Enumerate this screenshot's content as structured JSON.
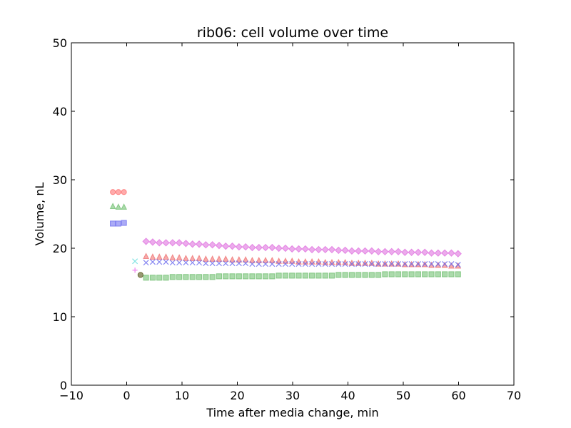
{
  "chart_data": {
    "type": "scatter",
    "title": "rib06: cell volume over time",
    "xlabel": "Time after media change, min",
    "ylabel": "Volume, nL",
    "xlim": [
      -10,
      70
    ],
    "ylim": [
      0,
      50
    ],
    "xticks": [
      -10,
      0,
      10,
      20,
      30,
      40,
      50,
      60,
      70
    ],
    "yticks": [
      0,
      10,
      20,
      30,
      40,
      50
    ],
    "xtick_labels": [
      "−10",
      "0",
      "10",
      "20",
      "30",
      "40",
      "50",
      "60",
      "70"
    ],
    "ytick_labels": [
      "0",
      "10",
      "20",
      "30",
      "40",
      "50"
    ],
    "grid": false,
    "legend": "none",
    "series": [
      {
        "marker": "circle",
        "color": "#ff6666",
        "x": [
          -2.5,
          -1.5,
          -0.5
        ],
        "y": [
          28.2,
          28.2,
          28.2
        ]
      },
      {
        "marker": "triangle",
        "color": "#66bb66",
        "x": [
          -2.5,
          -1.5,
          -0.5
        ],
        "y": [
          26.1,
          26.0,
          26.0
        ]
      },
      {
        "marker": "square",
        "color": "#6666ee",
        "x": [
          -2.5,
          -1.5,
          -0.5
        ],
        "y": [
          23.6,
          23.6,
          23.7
        ]
      },
      {
        "marker": "x",
        "color": "#66dddd",
        "x": [
          1.5
        ],
        "y": [
          18.1
        ]
      },
      {
        "marker": "plus",
        "color": "#ee66ee",
        "x": [
          1.5
        ],
        "y": [
          16.8
        ]
      },
      {
        "marker": "circle",
        "color": "#444400",
        "x": [
          2.5
        ],
        "y": [
          16.1
        ]
      },
      {
        "marker": "diamond",
        "color": "#dd66dd",
        "x": [
          3.5,
          4.7,
          5.9,
          7.1,
          8.3,
          9.5,
          10.7,
          11.9,
          13.1,
          14.3,
          15.5,
          16.7,
          17.9,
          19.1,
          20.3,
          21.5,
          22.7,
          23.9,
          25.1,
          26.3,
          27.5,
          28.7,
          29.9,
          31.1,
          32.3,
          33.5,
          34.7,
          35.9,
          37.1,
          38.3,
          39.5,
          40.7,
          41.9,
          43.1,
          44.3,
          45.5,
          46.7,
          47.9,
          49.1,
          50.3,
          51.5,
          52.7,
          53.9,
          55.1,
          56.3,
          57.5,
          58.7,
          59.9
        ],
        "y": [
          21.0,
          20.9,
          20.8,
          20.8,
          20.8,
          20.8,
          20.7,
          20.6,
          20.6,
          20.5,
          20.5,
          20.4,
          20.3,
          20.3,
          20.2,
          20.2,
          20.1,
          20.1,
          20.1,
          20.1,
          20.0,
          20.0,
          19.9,
          19.9,
          19.9,
          19.8,
          19.8,
          19.8,
          19.8,
          19.7,
          19.7,
          19.6,
          19.6,
          19.6,
          19.6,
          19.5,
          19.5,
          19.5,
          19.5,
          19.4,
          19.4,
          19.4,
          19.4,
          19.3,
          19.3,
          19.3,
          19.3,
          19.2
        ]
      },
      {
        "marker": "triangle",
        "color": "#ee6666",
        "x": [
          3.5,
          4.7,
          5.9,
          7.1,
          8.3,
          9.5,
          10.7,
          11.9,
          13.1,
          14.3,
          15.5,
          16.7,
          17.9,
          19.1,
          20.3,
          21.5,
          22.7,
          23.9,
          25.1,
          26.3,
          27.5,
          28.7,
          29.9,
          31.1,
          32.3,
          33.5,
          34.7,
          35.9,
          37.1,
          38.3,
          39.5,
          40.7,
          41.9,
          43.1,
          44.3,
          45.5,
          46.7,
          47.9,
          49.1,
          50.3,
          51.5,
          52.7,
          53.9,
          55.1,
          56.3,
          57.5,
          58.7,
          59.9
        ],
        "y": [
          18.8,
          18.7,
          18.7,
          18.7,
          18.6,
          18.6,
          18.5,
          18.5,
          18.5,
          18.4,
          18.4,
          18.4,
          18.4,
          18.3,
          18.3,
          18.3,
          18.2,
          18.2,
          18.2,
          18.2,
          18.1,
          18.1,
          18.1,
          18.0,
          18.0,
          18.0,
          18.0,
          17.9,
          17.9,
          17.9,
          17.9,
          17.8,
          17.8,
          17.8,
          17.8,
          17.7,
          17.7,
          17.7,
          17.7,
          17.6,
          17.6,
          17.6,
          17.6,
          17.5,
          17.5,
          17.5,
          17.4,
          17.4
        ]
      },
      {
        "marker": "x",
        "color": "#6666ee",
        "x": [
          3.5,
          4.7,
          5.9,
          7.1,
          8.3,
          9.5,
          10.7,
          11.9,
          13.1,
          14.3,
          15.5,
          16.7,
          17.9,
          19.1,
          20.3,
          21.5,
          22.7,
          23.9,
          25.1,
          26.3,
          27.5,
          28.7,
          29.9,
          31.1,
          32.3,
          33.5,
          34.7,
          35.9,
          37.1,
          38.3,
          39.5,
          40.7,
          41.9,
          43.1,
          44.3,
          45.5,
          46.7,
          47.9,
          49.1,
          50.3,
          51.5,
          52.7,
          53.9,
          55.1,
          56.3,
          57.5,
          58.7,
          59.9
        ],
        "y": [
          17.9,
          18.0,
          18.0,
          18.0,
          17.9,
          17.9,
          17.9,
          17.9,
          17.9,
          17.8,
          17.8,
          17.8,
          17.8,
          17.8,
          17.8,
          17.8,
          17.7,
          17.7,
          17.7,
          17.7,
          17.7,
          17.7,
          17.7,
          17.7,
          17.7,
          17.7,
          17.7,
          17.7,
          17.7,
          17.7,
          17.7,
          17.7,
          17.7,
          17.7,
          17.7,
          17.7,
          17.7,
          17.7,
          17.7,
          17.7,
          17.7,
          17.7,
          17.7,
          17.7,
          17.7,
          17.7,
          17.7,
          17.6
        ]
      },
      {
        "marker": "square",
        "color": "#66bb66",
        "x": [
          3.5,
          4.7,
          5.9,
          7.1,
          8.3,
          9.5,
          10.7,
          11.9,
          13.1,
          14.3,
          15.5,
          16.7,
          17.9,
          19.1,
          20.3,
          21.5,
          22.7,
          23.9,
          25.1,
          26.3,
          27.5,
          28.7,
          29.9,
          31.1,
          32.3,
          33.5,
          34.7,
          35.9,
          37.1,
          38.3,
          39.5,
          40.7,
          41.9,
          43.1,
          44.3,
          45.5,
          46.7,
          47.9,
          49.1,
          50.3,
          51.5,
          52.7,
          53.9,
          55.1,
          56.3,
          57.5,
          58.7,
          59.9
        ],
        "y": [
          15.7,
          15.7,
          15.7,
          15.7,
          15.8,
          15.8,
          15.8,
          15.8,
          15.8,
          15.8,
          15.8,
          15.9,
          15.9,
          15.9,
          15.9,
          15.9,
          15.9,
          15.9,
          15.9,
          15.9,
          16.0,
          16.0,
          16.0,
          16.0,
          16.0,
          16.0,
          16.0,
          16.0,
          16.0,
          16.1,
          16.1,
          16.1,
          16.1,
          16.1,
          16.1,
          16.1,
          16.2,
          16.2,
          16.2,
          16.2,
          16.2,
          16.2,
          16.2,
          16.2,
          16.2,
          16.2,
          16.2,
          16.2
        ]
      }
    ]
  }
}
